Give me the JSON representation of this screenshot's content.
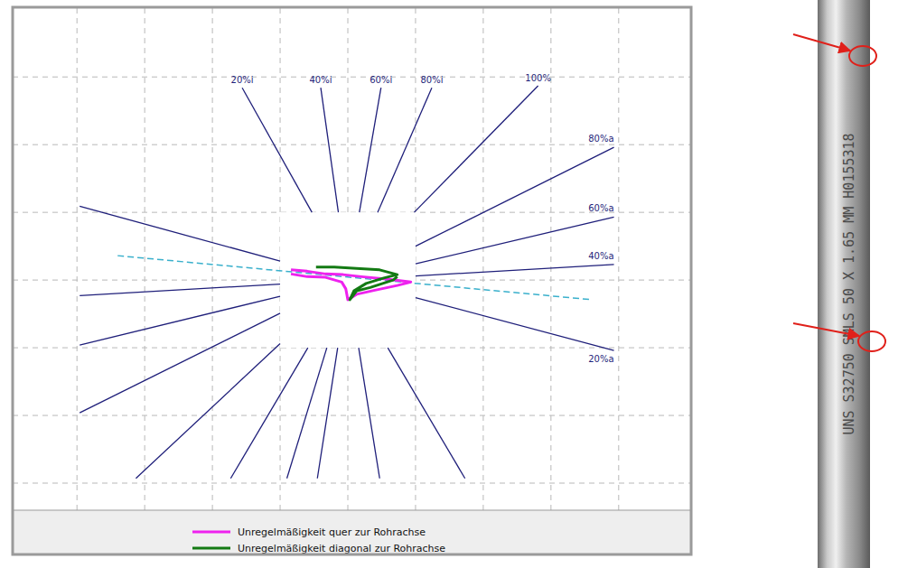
{
  "chart_data": {
    "type": "impedance_plane",
    "xlim": [
      -4.95,
      5.07
    ],
    "ylim": [
      -3.4,
      4.03
    ],
    "xticks": [
      -4,
      -3,
      -2,
      -1,
      0,
      1,
      2,
      3,
      4
    ],
    "yticks": [
      -3,
      -2,
      -1,
      0,
      1,
      2,
      3
    ],
    "grid": true,
    "tick_labels": false,
    "legend": "bottom",
    "series": [
      {
        "name": "Unregelmäßigkeit quer zur Rohrachse",
        "color": "#ee22ee",
        "x": [
          -0.84,
          -0.6,
          -0.33,
          -0.07,
          0.2,
          0.6,
          0.93,
          0.73,
          0.4,
          0.13,
          0.0,
          -0.03,
          -0.09,
          -0.33,
          -0.6,
          -0.84
        ],
        "values": [
          0.15,
          0.13,
          0.09,
          0.08,
          0.05,
          0.01,
          -0.03,
          -0.08,
          -0.15,
          -0.21,
          -0.29,
          -0.13,
          -0.03,
          0.04,
          0.05,
          0.09
        ]
      },
      {
        "name": "Unregelmäßigkeit diagonal zur Rohrachse",
        "color": "#137a13",
        "x": [
          -0.47,
          -0.2,
          0.13,
          0.47,
          0.73,
          0.53,
          0.27,
          0.09,
          0.03,
          0.13,
          0.33,
          0.67,
          0.73
        ],
        "values": [
          0.19,
          0.19,
          0.17,
          0.15,
          0.08,
          0.03,
          -0.05,
          -0.16,
          -0.29,
          -0.16,
          -0.11,
          0.0,
          0.05
        ]
      }
    ],
    "reference_lines": [
      {
        "label": "20%i",
        "x0": -0.53,
        "y0": 1,
        "x1": -1.56,
        "y1": 2.84
      },
      {
        "label": "40%i",
        "x0": -0.14,
        "y0": 1,
        "x1": -0.4,
        "y1": 2.84
      },
      {
        "label": "60%i",
        "x0": 0.17,
        "y0": 1,
        "x1": 0.49,
        "y1": 2.84
      },
      {
        "label": "80%i",
        "x0": 0.44,
        "y0": 1,
        "x1": 1.24,
        "y1": 2.84
      },
      {
        "label": "100%",
        "x0": 0.98,
        "y0": 1,
        "x1": 2.81,
        "y1": 2.87
      },
      {
        "label": "80%a",
        "x0": 1,
        "y0": 0.5,
        "x1": 3.93,
        "y1": 1.96
      },
      {
        "label": "60%a",
        "x0": 1,
        "y0": 0.24,
        "x1": 3.93,
        "y1": 0.93
      },
      {
        "label": "40%a",
        "x0": 1,
        "y0": 0.06,
        "x1": 3.93,
        "y1": 0.23
      },
      {
        "label": "20%a",
        "x0": 1,
        "y0": -0.26,
        "x1": 3.93,
        "y1": -1.04
      },
      {
        "label": null,
        "x0": -1,
        "y0": 0.28,
        "x1": -3.96,
        "y1": 1.09
      },
      {
        "label": null,
        "x0": -1,
        "y0": -0.06,
        "x1": -3.96,
        "y1": -0.23
      },
      {
        "label": null,
        "x0": -1,
        "y0": -0.24,
        "x1": -3.96,
        "y1": -0.96
      },
      {
        "label": null,
        "x0": -1,
        "y0": -0.49,
        "x1": -3.96,
        "y1": -1.96
      },
      {
        "label": null,
        "x0": -1,
        "y0": -0.94,
        "x1": -3.13,
        "y1": -2.93
      },
      {
        "label": null,
        "x0": -0.59,
        "y0": -1,
        "x1": -1.73,
        "y1": -2.93
      },
      {
        "label": null,
        "x0": -0.31,
        "y0": -1,
        "x1": -0.9,
        "y1": -2.93
      },
      {
        "label": null,
        "x0": -0.15,
        "y0": -1,
        "x1": -0.45,
        "y1": -2.93
      },
      {
        "label": null,
        "x0": 0.16,
        "y0": -1,
        "x1": 0.47,
        "y1": -2.93
      },
      {
        "label": null,
        "x0": 0.59,
        "y0": -1,
        "x1": 1.73,
        "y1": -2.93
      }
    ],
    "phase_line": {
      "x": [
        -3.4,
        3.6
      ],
      "y": [
        0.36,
        -0.29
      ],
      "color": "#3ab0cc",
      "line_style": "dashed"
    }
  },
  "photo": {
    "marking": "UNS S32750 SMLS 50 X 1.65 MM H0155318"
  }
}
